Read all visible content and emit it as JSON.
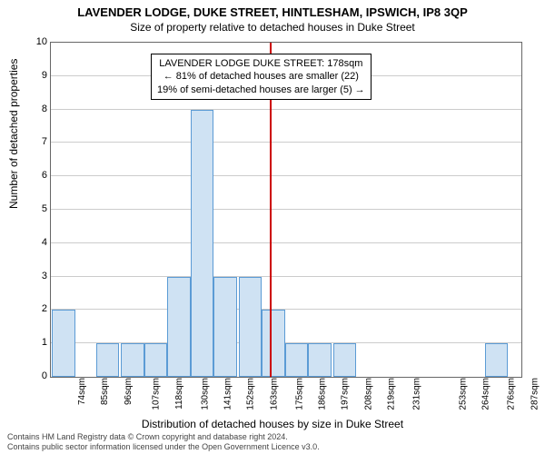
{
  "title": "LAVENDER LODGE, DUKE STREET, HINTLESHAM, IPSWICH, IP8 3QP",
  "subtitle": "Size of property relative to detached houses in Duke Street",
  "ylabel": "Number of detached properties",
  "xlabel": "Distribution of detached houses by size in Duke Street",
  "annotation": {
    "line1": "LAVENDER LODGE DUKE STREET: 178sqm",
    "line2": "← 81% of detached houses are smaller (22)",
    "line3": "19% of semi-detached houses are larger (5) →"
  },
  "chart": {
    "type": "bar",
    "background_color": "#ffffff",
    "grid_color": "#cccccc",
    "border_color": "#666666",
    "bar_fill": "#cfe2f3",
    "bar_stroke": "#5b9bd5",
    "refline_color": "#cc0000",
    "refline_x": 178,
    "xlim": [
      74,
      298
    ],
    "ylim": [
      0,
      10
    ],
    "ytick_step": 1,
    "xtick_labels": [
      "74sqm",
      "85sqm",
      "96sqm",
      "107sqm",
      "118sqm",
      "130sqm",
      "141sqm",
      "152sqm",
      "163sqm",
      "175sqm",
      "186sqm",
      "197sqm",
      "208sqm",
      "219sqm",
      "231sqm",
      "253sqm",
      "264sqm",
      "276sqm",
      "287sqm",
      "298sqm"
    ],
    "xtick_positions": [
      74,
      85,
      96,
      107,
      118,
      130,
      141,
      152,
      163,
      175,
      186,
      197,
      208,
      219,
      231,
      253,
      264,
      276,
      287,
      298
    ],
    "bar_width_sqm": 11,
    "bars": [
      {
        "x": 80,
        "h": 2
      },
      {
        "x": 101,
        "h": 1
      },
      {
        "x": 113,
        "h": 1
      },
      {
        "x": 124,
        "h": 1
      },
      {
        "x": 135,
        "h": 3
      },
      {
        "x": 146,
        "h": 8
      },
      {
        "x": 157,
        "h": 3
      },
      {
        "x": 169,
        "h": 3
      },
      {
        "x": 180,
        "h": 2
      },
      {
        "x": 191,
        "h": 1
      },
      {
        "x": 202,
        "h": 1
      },
      {
        "x": 214,
        "h": 1
      },
      {
        "x": 286,
        "h": 1
      }
    ],
    "title_fontsize": 13,
    "subtitle_fontsize": 12,
    "label_fontsize": 12,
    "tick_fontsize": 10
  },
  "footer": {
    "line1": "Contains HM Land Registry data © Crown copyright and database right 2024.",
    "line2": "Contains public sector information licensed under the Open Government Licence v3.0."
  }
}
